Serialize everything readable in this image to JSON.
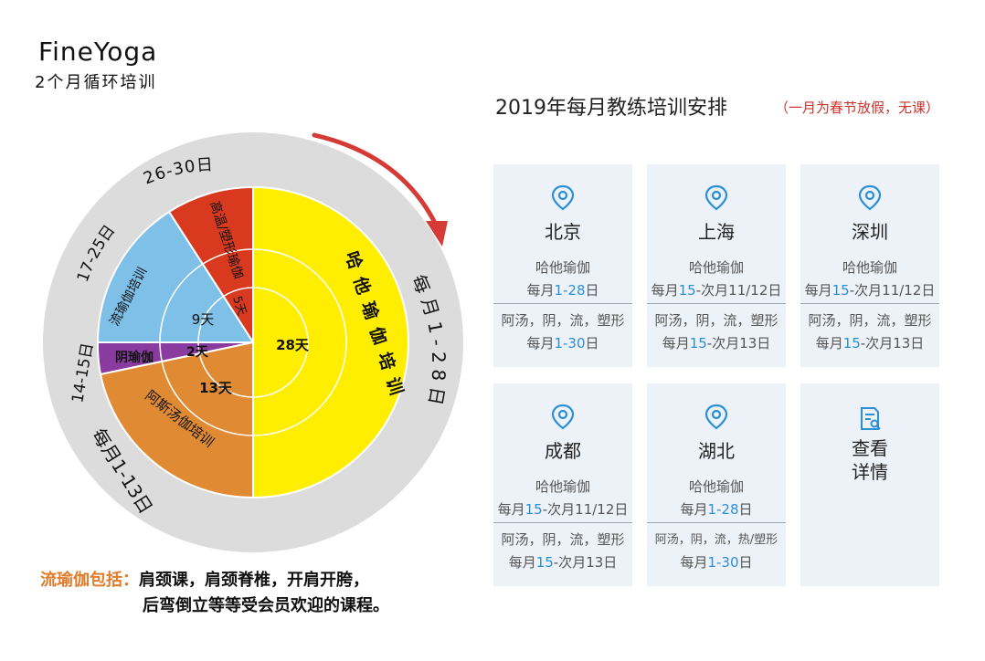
{
  "brand": {
    "name": "FineYoga",
    "subtitle": "2个月循环培训"
  },
  "diagram": {
    "outer_labels": {
      "top": "26-30日",
      "upper_left": "17-25日",
      "left": "14-15日",
      "lower_left": "每月1-13日",
      "right": "每月1-28日"
    },
    "big_half": {
      "name": "哈他瑜伽培训",
      "days": "28天",
      "color": "#ffee00"
    },
    "segments": [
      {
        "name": "高温/塑形瑜伽",
        "days": "5天",
        "color": "#d93a1f"
      },
      {
        "name": "流瑜伽培训",
        "days": "9天",
        "color": "#7ec0e8"
      },
      {
        "name": "阴瑜伽",
        "days": "2天",
        "color": "#8a3ba0"
      },
      {
        "name": "阿斯汤伽培训",
        "days": "13天",
        "color": "#e08a34"
      }
    ],
    "ring_color": "#dcdcdc",
    "arrow_color": "#d63a36"
  },
  "footnote": {
    "highlight": "流瑜伽包括：",
    "line1": "肩颈课，肩颈脊椎，开肩开胯，",
    "line2": "后弯倒立等等受会员欢迎的课程。"
  },
  "schedule": {
    "title": "2019年每月教练培训安排",
    "note": "（一月为春节放假，无课）",
    "cards": [
      {
        "city": "北京",
        "type": "哈他瑜伽",
        "period_pre": "每月",
        "period_hi": "1-28",
        "period_post": "日",
        "types2": "阿汤，阴，流，塑形",
        "period2_pre": "每月",
        "period2_hi": "1-30",
        "period2_post": "日"
      },
      {
        "city": "上海",
        "type": "哈他瑜伽",
        "period_pre": "每月",
        "period_hi": "15",
        "period_post": "-次月11/12日",
        "types2": "阿汤，阴，流，塑形",
        "period2_pre": "每月",
        "period2_hi": "15",
        "period2_post": "-次月13日"
      },
      {
        "city": "深圳",
        "type": "哈他瑜伽",
        "period_pre": "每月",
        "period_hi": "15",
        "period_post": "-次月11/12日",
        "types2": "阿汤，阴，流，塑形",
        "period2_pre": "每月",
        "period2_hi": "15",
        "period2_post": "-次月13日"
      },
      {
        "city": "成都",
        "type": "哈他瑜伽",
        "period_pre": "每月",
        "period_hi": "15",
        "period_post": "-次月11/12日",
        "types2": "阿汤，阴，流，塑形",
        "period2_pre": "每月",
        "period2_hi": "15",
        "period2_post": "-次月13日"
      },
      {
        "city": "湖北",
        "type": "哈他瑜伽",
        "period_pre": "每月",
        "period_hi": "1-28",
        "period_post": "日",
        "types2": "阿汤，阴，流，热/塑形",
        "period2_pre": "每月",
        "period2_hi": "1-30",
        "period2_post": "日"
      }
    ],
    "detail": {
      "line1": "查看",
      "line2": "详情"
    },
    "accent": "#2b8fd6"
  }
}
